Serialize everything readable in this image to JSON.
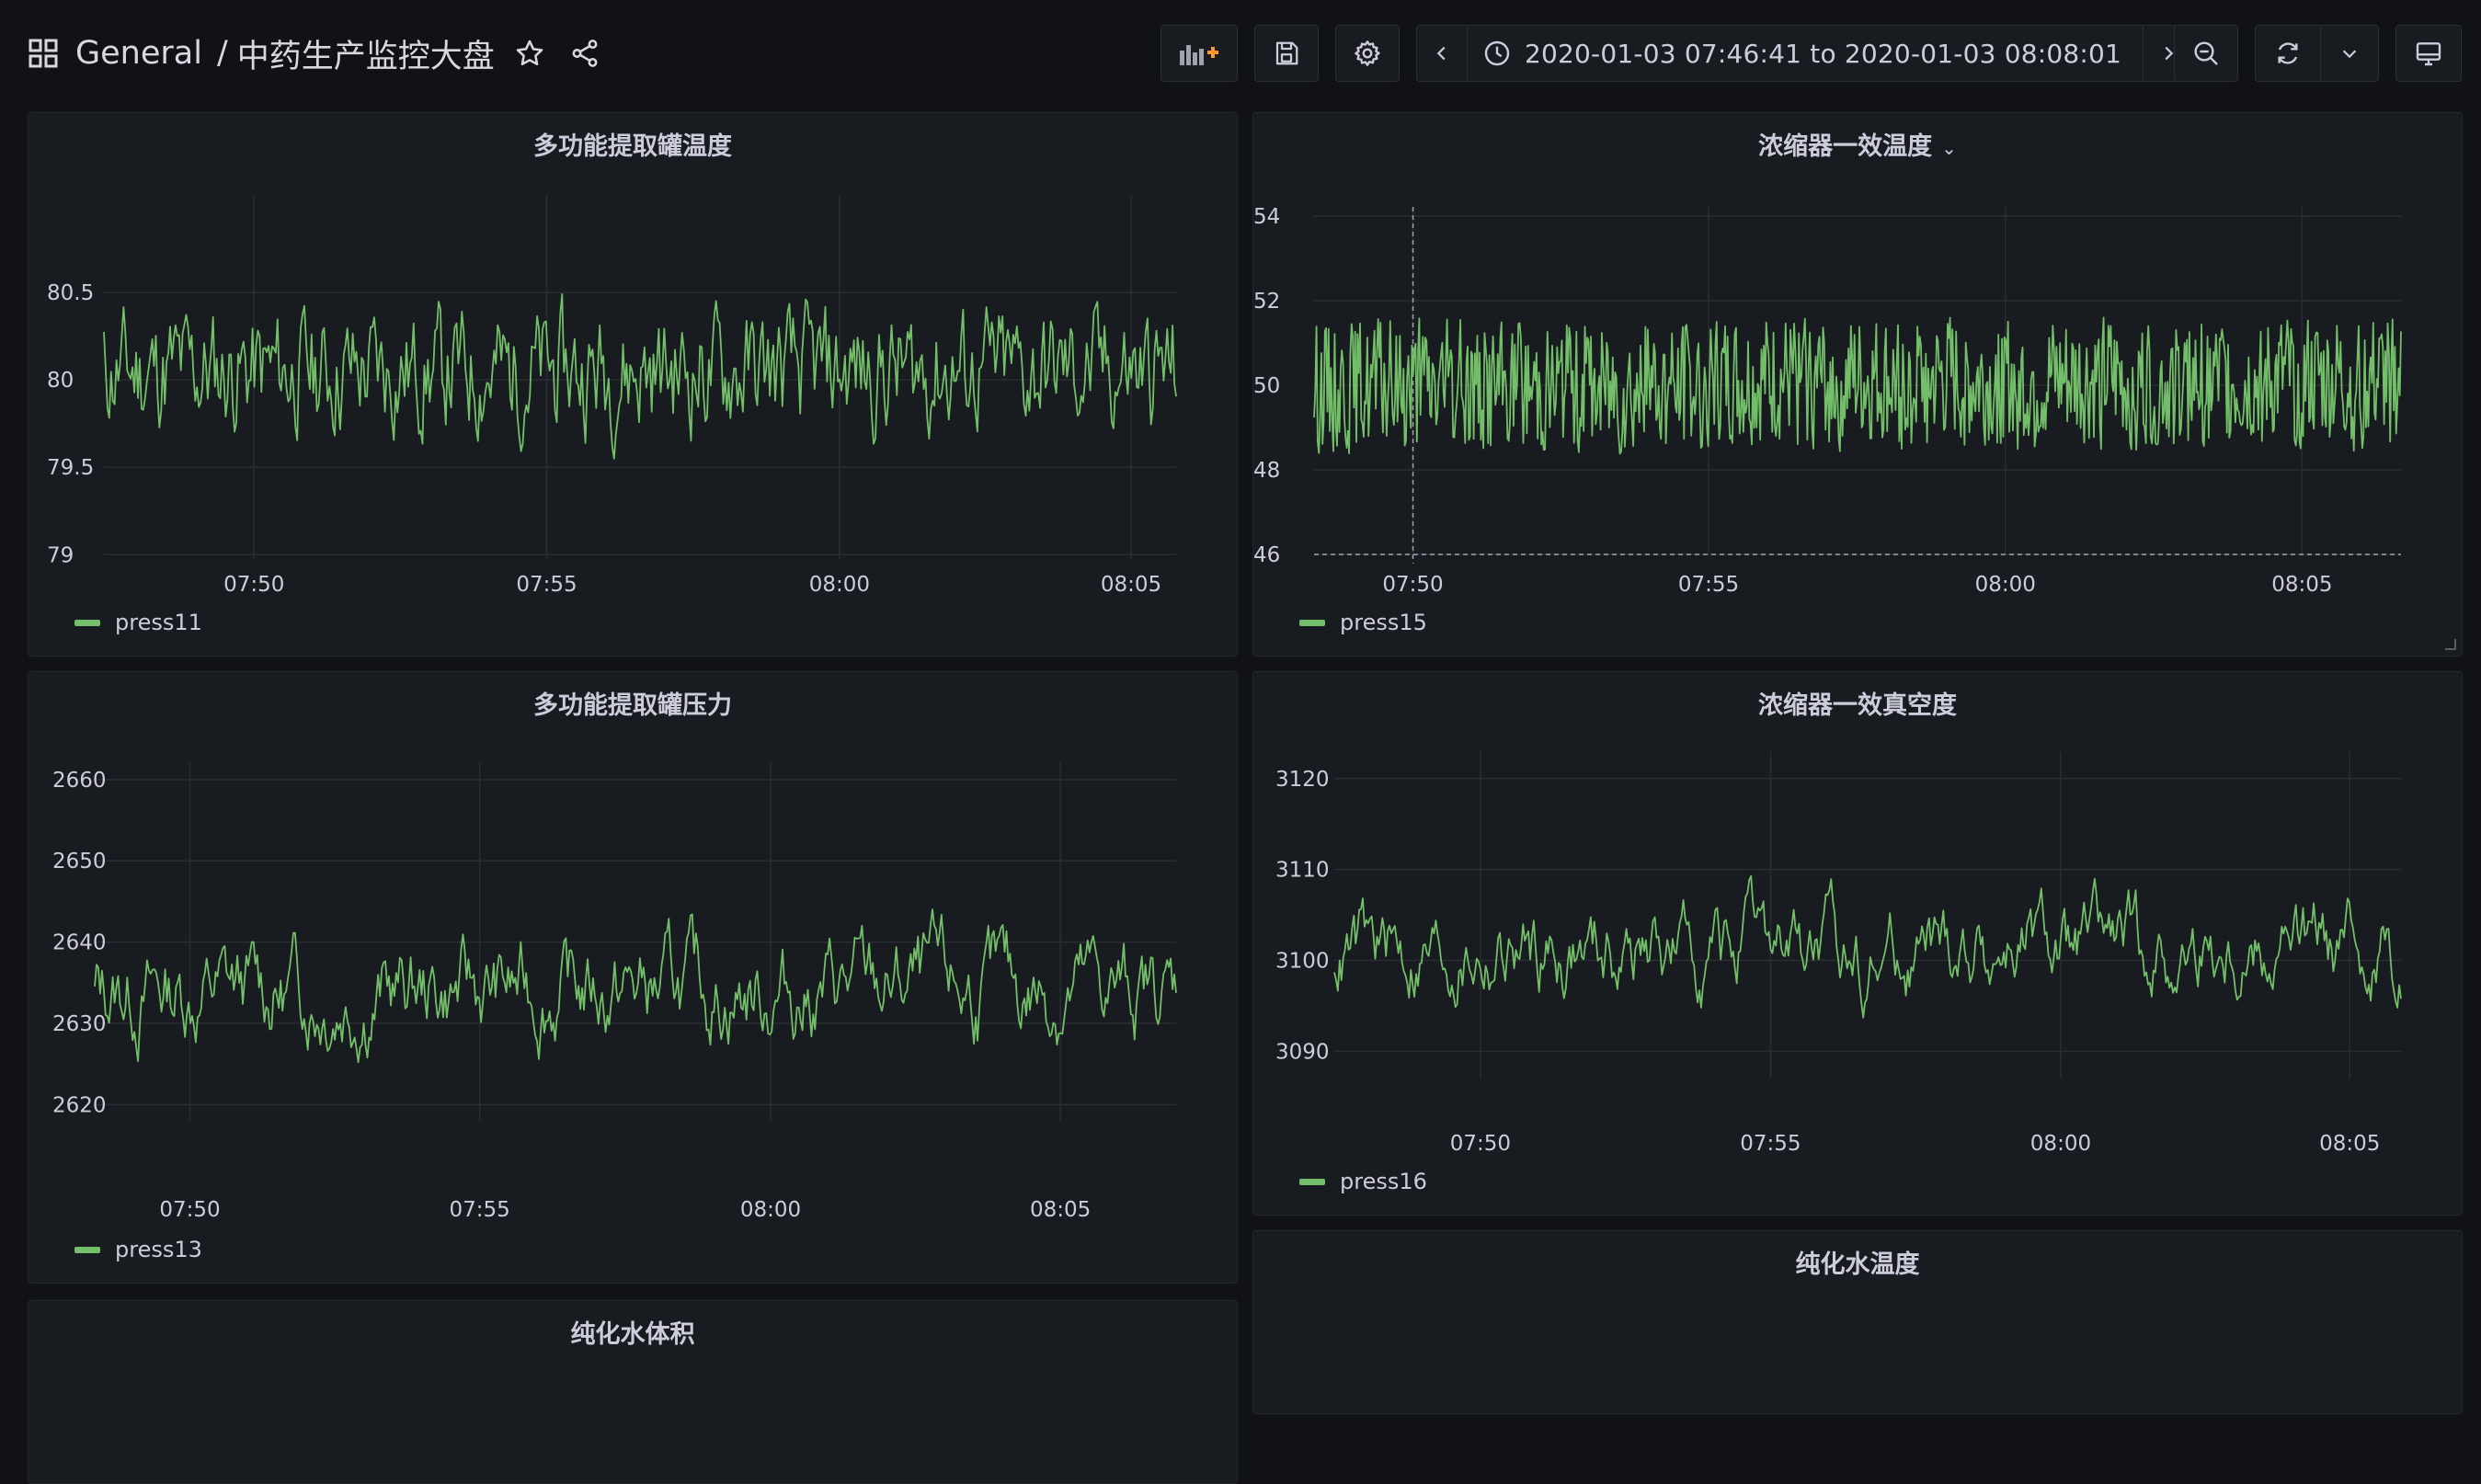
{
  "navbar": {
    "folder": "General",
    "separator": "/",
    "dashboard_title": "中药生产监控大盘",
    "time_range": "2020-01-03 07:46:41 to 2020-01-03 08:08:01",
    "icons": {
      "apps": "grid-icon",
      "star": "star-icon",
      "share": "share-icon",
      "add_panel": "add-panel-icon",
      "save": "save-icon",
      "settings": "gear-icon",
      "prev": "chevron-left-icon",
      "clock": "clock-icon",
      "time_dropdown": "chevron-down-icon",
      "next": "chevron-right-icon",
      "zoom_out": "zoom-out-icon",
      "refresh": "refresh-icon",
      "refresh_dropdown": "chevron-down-icon",
      "tv_mode": "monitor-icon"
    }
  },
  "colors": {
    "series": "#73bf69",
    "background": "#111217",
    "panel": "#181b1f",
    "grid": "#2a2d33",
    "text": "#ccccdc",
    "accent": "#ff9830"
  },
  "panels": [
    {
      "title": "多功能提取罐温度",
      "chart_data": {
        "type": "line",
        "title": "多功能提取罐温度",
        "x_ticks": [
          "07:50",
          "07:55",
          "08:00",
          "08:05"
        ],
        "y_ticks": [
          "79",
          "79.5",
          "80",
          "80.5"
        ],
        "ylim": [
          78.97,
          81.0
        ],
        "series": [
          {
            "name": "press11",
            "mean": 80.05,
            "amplitude": 0.28,
            "min": 79.18,
            "max": 80.72,
            "seed": 11,
            "smooth": 0.55
          }
        ],
        "legend": "bottom-left"
      }
    },
    {
      "title": "浓缩器一效温度",
      "chart_data": {
        "type": "line",
        "title": "浓缩器一效温度",
        "x_ticks": [
          "07:50",
          "07:55",
          "08:00",
          "08:05"
        ],
        "y_ticks": [
          "46",
          "48",
          "50",
          "52",
          "54"
        ],
        "ylim": [
          46,
          54
        ],
        "series": [
          {
            "name": "press15",
            "mean": 50.0,
            "amplitude": 1.2,
            "min": 46.6,
            "max": 53.4,
            "seed": 15,
            "smooth": 0.1
          }
        ],
        "legend": "bottom-left",
        "crosshair_x": "07:50"
      }
    },
    {
      "title": "多功能提取罐压力",
      "chart_data": {
        "type": "line",
        "title": "多功能提取罐压力",
        "x_ticks": [
          "07:50",
          "07:55",
          "08:00",
          "08:05"
        ],
        "y_ticks": [
          "2620",
          "2630",
          "2640",
          "2650",
          "2660"
        ],
        "ylim": [
          2618,
          2661
        ],
        "series": [
          {
            "name": "press13",
            "mean": 2634,
            "amplitude": 9,
            "min": 2617,
            "max": 2657,
            "seed": 13,
            "smooth": 0.82
          }
        ],
        "legend": "bottom-left"
      }
    },
    {
      "title": "浓缩器一效真空度",
      "chart_data": {
        "type": "line",
        "title": "浓缩器一效真空度",
        "x_ticks": [
          "07:50",
          "07:55",
          "08:00",
          "08:05"
        ],
        "y_ticks": [
          "3090",
          "3100",
          "3110",
          "3120"
        ],
        "ylim": [
          3087,
          3122
        ],
        "series": [
          {
            "name": "press16",
            "mean": 3101,
            "amplitude": 7,
            "min": 3088,
            "max": 3121,
            "seed": 16,
            "smooth": 0.82
          }
        ],
        "legend": "bottom-left"
      }
    },
    {
      "title": "纯化水温度"
    },
    {
      "title": "纯化水体积"
    }
  ]
}
